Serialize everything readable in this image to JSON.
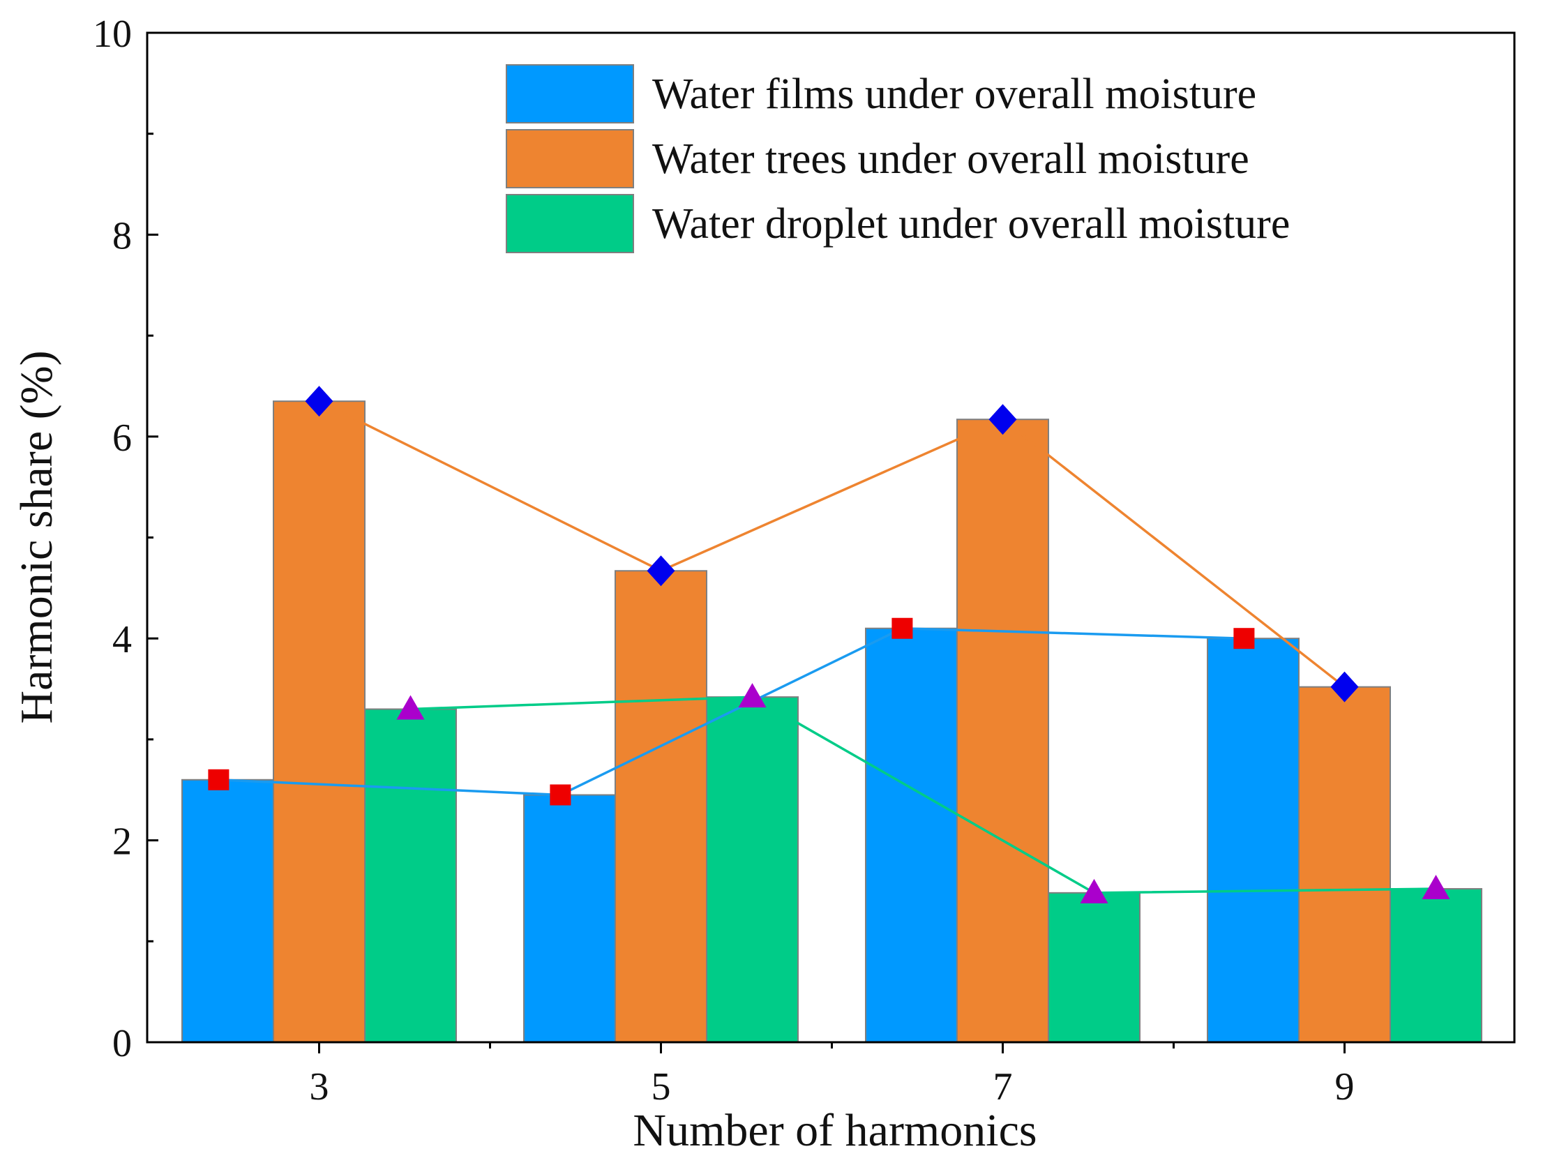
{
  "chart_data": {
    "type": "bar",
    "title": "",
    "xlabel": "Number of harmonics",
    "ylabel": "Harmonic share (%)",
    "categories": [
      "3",
      "5",
      "7",
      "9"
    ],
    "ylim": [
      0,
      10
    ],
    "yticks": [
      "0",
      "2",
      "4",
      "6",
      "8",
      "10"
    ],
    "grid": false,
    "legend_position": "top-right",
    "series": [
      {
        "name": "Water films under overall moisture",
        "values": [
          2.6,
          2.45,
          4.1,
          4.0
        ],
        "color": "#0099ff",
        "line_color": "#1a9bf0",
        "marker": "square",
        "marker_color": "#ee0000"
      },
      {
        "name": "Water trees under overall moisture",
        "values": [
          6.35,
          4.67,
          6.17,
          3.52
        ],
        "color": "#ee8430",
        "line_color": "#ee8430",
        "marker": "diamond",
        "marker_color": "#0000ee"
      },
      {
        "name": "Water droplet under overall moisture",
        "values": [
          3.3,
          3.42,
          1.48,
          1.52
        ],
        "color": "#00cc88",
        "line_color": "#00cc88",
        "marker": "triangle",
        "marker_color": "#aa00cc"
      }
    ]
  }
}
